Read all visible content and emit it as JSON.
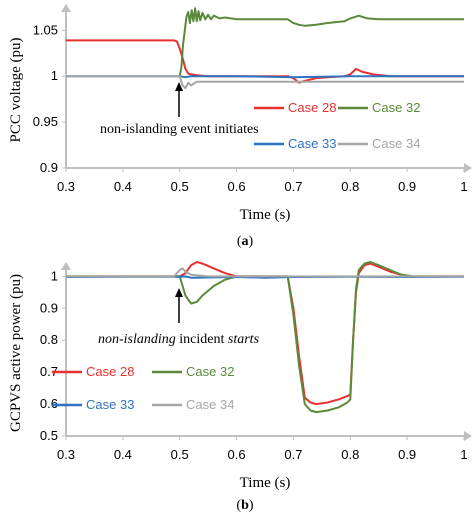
{
  "chart_data": [
    {
      "type": "line",
      "caption": "(a)",
      "xlabel": "Time (s)",
      "ylabel": "PCC voltage (pu)",
      "xlim": [
        0.3,
        1.0
      ],
      "ylim": [
        0.9,
        1.07
      ],
      "x_ticks": [
        "0.3",
        "0.4",
        "0.5",
        "0.6",
        "0.7",
        "0.8",
        "0.9",
        "1"
      ],
      "y_ticks": [
        {
          "value": 0.9,
          "label": "0.9"
        },
        {
          "value": 0.95,
          "label": "0.95"
        },
        {
          "value": 1.0,
          "label": "1"
        },
        {
          "value": 1.05,
          "label": "1.05"
        }
      ],
      "grid": false,
      "annotation": {
        "text": "non-islanding event initiates",
        "x": 0.5,
        "y": 0.985
      },
      "legend_layout": "two-by-two, lower right",
      "series": [
        {
          "name": "Case 28",
          "color": "#e8312f",
          "points": [
            [
              0.3,
              1.039
            ],
            [
              0.49,
              1.039
            ],
            [
              0.495,
              1.038
            ],
            [
              0.5,
              1.03
            ],
            [
              0.505,
              1.02
            ],
            [
              0.51,
              1.008
            ],
            [
              0.515,
              1.003
            ],
            [
              0.52,
              1.002
            ],
            [
              0.53,
              1.001
            ],
            [
              0.55,
              1.0
            ],
            [
              0.69,
              1.0
            ],
            [
              0.7,
              0.998
            ],
            [
              0.71,
              0.993
            ],
            [
              0.72,
              0.995
            ],
            [
              0.74,
              0.998
            ],
            [
              0.76,
              0.999
            ],
            [
              0.79,
              1.0
            ],
            [
              0.8,
              1.002
            ],
            [
              0.81,
              1.008
            ],
            [
              0.82,
              1.005
            ],
            [
              0.84,
              1.002
            ],
            [
              0.87,
              1.0
            ],
            [
              1.0,
              1.0
            ]
          ]
        },
        {
          "name": "Case 32",
          "color": "#5a8a3a",
          "points": [
            [
              0.5,
              1.0
            ],
            [
              0.503,
              1.01
            ],
            [
              0.506,
              1.035
            ],
            [
              0.509,
              1.05
            ],
            [
              0.512,
              1.065
            ],
            [
              0.515,
              1.07
            ],
            [
              0.518,
              1.058
            ],
            [
              0.521,
              1.072
            ],
            [
              0.524,
              1.06
            ],
            [
              0.527,
              1.074
            ],
            [
              0.53,
              1.06
            ],
            [
              0.533,
              1.071
            ],
            [
              0.536,
              1.061
            ],
            [
              0.54,
              1.069
            ],
            [
              0.545,
              1.062
            ],
            [
              0.55,
              1.067
            ],
            [
              0.555,
              1.062
            ],
            [
              0.56,
              1.066
            ],
            [
              0.57,
              1.063
            ],
            [
              0.58,
              1.064
            ],
            [
              0.6,
              1.062
            ],
            [
              0.65,
              1.062
            ],
            [
              0.69,
              1.062
            ],
            [
              0.7,
              1.058
            ],
            [
              0.71,
              1.056
            ],
            [
              0.72,
              1.055
            ],
            [
              0.74,
              1.056
            ],
            [
              0.76,
              1.058
            ],
            [
              0.79,
              1.06
            ],
            [
              0.8,
              1.063
            ],
            [
              0.815,
              1.066
            ],
            [
              0.83,
              1.063
            ],
            [
              0.85,
              1.062
            ],
            [
              0.9,
              1.062
            ],
            [
              1.0,
              1.062
            ]
          ]
        },
        {
          "name": "Case 33",
          "color": "#2e73c2",
          "points": [
            [
              0.3,
              1.0
            ],
            [
              0.5,
              1.0
            ],
            [
              0.51,
              0.999
            ],
            [
              0.52,
              1.0
            ],
            [
              0.6,
              1.0
            ],
            [
              0.7,
              0.999
            ],
            [
              0.8,
              1.0
            ],
            [
              1.0,
              1.0
            ]
          ]
        },
        {
          "name": "Case 34",
          "color": "#a6a6a6",
          "points": [
            [
              0.3,
              1.0
            ],
            [
              0.5,
              1.0
            ],
            [
              0.505,
              0.99
            ],
            [
              0.51,
              0.987
            ],
            [
              0.515,
              0.993
            ],
            [
              0.52,
              0.99
            ],
            [
              0.53,
              0.994
            ],
            [
              0.54,
              0.994
            ],
            [
              0.6,
              0.994
            ],
            [
              0.7,
              0.994
            ],
            [
              0.8,
              0.994
            ],
            [
              1.0,
              0.994
            ]
          ]
        }
      ]
    },
    {
      "type": "line",
      "caption": "(b)",
      "xlabel": "Time (s)",
      "ylabel": "GCPVS active power (pu)",
      "xlim": [
        0.3,
        1.0
      ],
      "ylim": [
        0.5,
        1.02
      ],
      "x_ticks": [
        "0.3",
        "0.4",
        "0.5",
        "0.6",
        "0.7",
        "0.8",
        "0.9",
        "1"
      ],
      "y_ticks": [
        {
          "value": 0.5,
          "label": "0.5"
        },
        {
          "value": 0.6,
          "label": "0.6"
        },
        {
          "value": 0.7,
          "label": "0.7"
        },
        {
          "value": 0.8,
          "label": "0.8"
        },
        {
          "value": 0.9,
          "label": "0.9"
        },
        {
          "value": 1.0,
          "label": "1"
        }
      ],
      "grid": false,
      "annotation": {
        "text_italic_1": "non-islanding",
        "text_normal": " incident ",
        "text_italic_2": "starts",
        "x": 0.5,
        "y": 0.95
      },
      "legend_layout": "two-by-two, lower left",
      "series": [
        {
          "name": "Case 28",
          "color": "#e8312f",
          "points": [
            [
              0.3,
              1.0
            ],
            [
              0.5,
              1.0
            ],
            [
              0.51,
              1.01
            ],
            [
              0.52,
              1.035
            ],
            [
              0.53,
              1.045
            ],
            [
              0.54,
              1.04
            ],
            [
              0.56,
              1.025
            ],
            [
              0.58,
              1.01
            ],
            [
              0.6,
              1.0
            ],
            [
              0.68,
              1.0
            ],
            [
              0.69,
              1.0
            ],
            [
              0.7,
              0.9
            ],
            [
              0.71,
              0.75
            ],
            [
              0.72,
              0.62
            ],
            [
              0.73,
              0.605
            ],
            [
              0.74,
              0.6
            ],
            [
              0.76,
              0.605
            ],
            [
              0.78,
              0.615
            ],
            [
              0.795,
              0.625
            ],
            [
              0.8,
              0.63
            ],
            [
              0.805,
              0.8
            ],
            [
              0.81,
              0.95
            ],
            [
              0.815,
              1.01
            ],
            [
              0.825,
              1.035
            ],
            [
              0.835,
              1.04
            ],
            [
              0.85,
              1.03
            ],
            [
              0.87,
              1.015
            ],
            [
              0.89,
              1.005
            ],
            [
              0.91,
              1.0
            ],
            [
              1.0,
              1.0
            ]
          ]
        },
        {
          "name": "Case 32",
          "color": "#5a8a3a",
          "points": [
            [
              0.3,
              1.0
            ],
            [
              0.5,
              1.0
            ],
            [
              0.505,
              0.97
            ],
            [
              0.51,
              0.94
            ],
            [
              0.52,
              0.915
            ],
            [
              0.53,
              0.92
            ],
            [
              0.54,
              0.94
            ],
            [
              0.56,
              0.97
            ],
            [
              0.58,
              0.99
            ],
            [
              0.6,
              1.0
            ],
            [
              0.68,
              1.0
            ],
            [
              0.69,
              1.0
            ],
            [
              0.7,
              0.88
            ],
            [
              0.71,
              0.72
            ],
            [
              0.72,
              0.6
            ],
            [
              0.73,
              0.58
            ],
            [
              0.74,
              0.575
            ],
            [
              0.76,
              0.58
            ],
            [
              0.78,
              0.59
            ],
            [
              0.795,
              0.605
            ],
            [
              0.8,
              0.615
            ],
            [
              0.805,
              0.8
            ],
            [
              0.81,
              0.96
            ],
            [
              0.815,
              1.02
            ],
            [
              0.825,
              1.04
            ],
            [
              0.835,
              1.045
            ],
            [
              0.85,
              1.035
            ],
            [
              0.87,
              1.02
            ],
            [
              0.89,
              1.005
            ],
            [
              0.91,
              1.0
            ],
            [
              1.0,
              1.0
            ]
          ]
        },
        {
          "name": "Case 33",
          "color": "#2e73c2",
          "points": [
            [
              0.3,
              0.998
            ],
            [
              0.4,
              0.999
            ],
            [
              0.5,
              0.999
            ],
            [
              0.51,
              1.0
            ],
            [
              0.52,
              0.996
            ],
            [
              0.6,
              0.998
            ],
            [
              0.65,
              0.996
            ],
            [
              0.7,
              0.998
            ],
            [
              0.8,
              0.999
            ],
            [
              0.9,
              0.998
            ],
            [
              1.0,
              0.999
            ]
          ]
        },
        {
          "name": "Case 34",
          "color": "#a6a6a6",
          "points": [
            [
              0.3,
              1.0
            ],
            [
              0.49,
              1.0
            ],
            [
              0.495,
              1.01
            ],
            [
              0.5,
              1.02
            ],
            [
              0.505,
              1.025
            ],
            [
              0.51,
              1.015
            ],
            [
              0.52,
              1.005
            ],
            [
              0.55,
              1.0
            ],
            [
              0.6,
              1.0
            ],
            [
              1.0,
              1.0
            ]
          ]
        }
      ]
    }
  ]
}
